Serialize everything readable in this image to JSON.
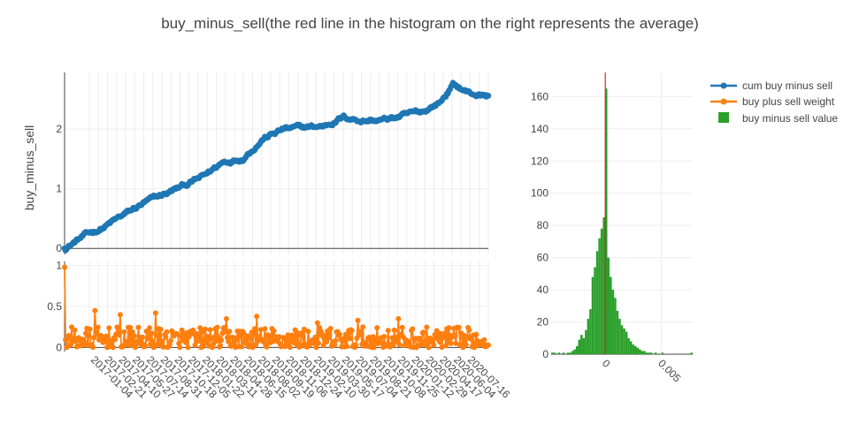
{
  "chart_data": [
    {
      "type": "line",
      "panel": "cum",
      "title": "buy_minus_sell(the red line in the histogram on the right represents the average)",
      "ylabel": "buy_minus_sell",
      "ylim": [
        -0.1,
        2.95
      ],
      "yticks": [
        0,
        1,
        2
      ],
      "series_name": "cum buy minus sell",
      "color": "#1f77b4",
      "x_range": [
        "2017-01-04",
        "2020-07-16"
      ],
      "anchors": [
        [
          "2017-01-04",
          0.0
        ],
        [
          "2017-03-01",
          0.2
        ],
        [
          "2017-05-01",
          0.35
        ],
        [
          "2017-07-01",
          0.55
        ],
        [
          "2017-09-01",
          0.75
        ],
        [
          "2017-11-01",
          0.9
        ],
        [
          "2018-01-01",
          1.05
        ],
        [
          "2018-03-01",
          1.2
        ],
        [
          "2018-05-01",
          1.45
        ],
        [
          "2018-07-01",
          1.53
        ],
        [
          "2018-09-01",
          1.85
        ],
        [
          "2018-11-01",
          2.0
        ],
        [
          "2019-01-01",
          2.02
        ],
        [
          "2019-03-01",
          2.05
        ],
        [
          "2019-05-01",
          2.2
        ],
        [
          "2019-07-01",
          2.15
        ],
        [
          "2019-09-01",
          2.15
        ],
        [
          "2019-11-01",
          2.22
        ],
        [
          "2020-01-01",
          2.3
        ],
        [
          "2020-02-20",
          2.45
        ],
        [
          "2020-04-01",
          2.75
        ],
        [
          "2020-05-20",
          2.6
        ],
        [
          "2020-07-16",
          2.55
        ]
      ]
    },
    {
      "type": "line",
      "panel": "weight",
      "ylim": [
        -0.05,
        1.05
      ],
      "yticks": [
        0,
        0.5,
        1
      ],
      "ytick_labels": [
        "0",
        "0.5",
        "1"
      ],
      "series_name": "buy plus sell weight",
      "color": "#ff7f0e",
      "x_tick_labels": [
        "2017-01-04",
        "2017-02-21",
        "2017-04-10",
        "2017-05-27",
        "2017-07-14",
        "2017-08-31",
        "2017-10-18",
        "2017-12-05",
        "2018-01-22",
        "2018-03-11",
        "2018-04-28",
        "2018-06-15",
        "2018-08-02",
        "2018-09-19",
        "2018-11-06",
        "2018-12-24",
        "2019-02-10",
        "2019-03-30",
        "2019-05-17",
        "2019-07-04",
        "2019-08-21",
        "2019-10-08",
        "2019-11-25",
        "2020-01-12",
        "2020-02-29",
        "2020-04-17",
        "2020-06-04",
        "2020-07-16"
      ],
      "first_value": 0.98,
      "typical_range": [
        0.0,
        0.25
      ],
      "peaks": [
        0.45,
        0.4,
        0.42,
        0.35,
        0.38,
        0.3,
        0.33,
        0.35
      ]
    },
    {
      "type": "bar",
      "panel": "histogram",
      "series_name": "buy minus sell value",
      "color": "#2ca02c",
      "mean_line_color": "#d62728",
      "xlim": [
        -0.0048,
        0.0078
      ],
      "xticks": [
        0,
        0.005
      ],
      "xtick_labels": [
        "0",
        "0.005"
      ],
      "ylim": [
        0,
        175
      ],
      "yticks": [
        0,
        20,
        40,
        60,
        80,
        100,
        120,
        140,
        160
      ],
      "bin_width": 0.0002,
      "bins": [
        [
          -0.0048,
          1
        ],
        [
          -0.0046,
          1
        ],
        [
          -0.0044,
          0
        ],
        [
          -0.0042,
          1
        ],
        [
          -0.004,
          0
        ],
        [
          -0.0038,
          1
        ],
        [
          -0.0036,
          0
        ],
        [
          -0.0034,
          1
        ],
        [
          -0.0032,
          1
        ],
        [
          -0.003,
          2
        ],
        [
          -0.0028,
          3
        ],
        [
          -0.0026,
          5
        ],
        [
          -0.0024,
          9
        ],
        [
          -0.0022,
          12
        ],
        [
          -0.002,
          10
        ],
        [
          -0.0018,
          15
        ],
        [
          -0.0016,
          22
        ],
        [
          -0.0014,
          28
        ],
        [
          -0.0012,
          48
        ],
        [
          -0.001,
          54
        ],
        [
          -0.0008,
          64
        ],
        [
          -0.0006,
          72
        ],
        [
          -0.0004,
          78
        ],
        [
          -0.0002,
          85
        ],
        [
          0.0,
          165
        ],
        [
          0.0002,
          60
        ],
        [
          0.0004,
          48
        ],
        [
          0.0006,
          40
        ],
        [
          0.0008,
          35
        ],
        [
          0.001,
          27
        ],
        [
          0.0012,
          22
        ],
        [
          0.0014,
          18
        ],
        [
          0.0016,
          16
        ],
        [
          0.0018,
          14
        ],
        [
          0.002,
          10
        ],
        [
          0.0022,
          8
        ],
        [
          0.0024,
          6
        ],
        [
          0.0026,
          5
        ],
        [
          0.0028,
          4
        ],
        [
          0.003,
          3
        ],
        [
          0.0032,
          2
        ],
        [
          0.0034,
          2
        ],
        [
          0.0036,
          1
        ],
        [
          0.0038,
          1
        ],
        [
          0.004,
          1
        ],
        [
          0.0042,
          0
        ],
        [
          0.0044,
          1
        ],
        [
          0.0046,
          0
        ],
        [
          0.0048,
          0
        ],
        [
          0.005,
          1
        ],
        [
          0.0052,
          0
        ],
        [
          0.0054,
          0
        ],
        [
          0.0056,
          0
        ],
        [
          0.0058,
          0
        ],
        [
          0.006,
          0
        ],
        [
          0.0062,
          0
        ],
        [
          0.0064,
          0
        ],
        [
          0.0066,
          0
        ],
        [
          0.0068,
          0
        ],
        [
          0.007,
          0
        ],
        [
          0.0072,
          0
        ],
        [
          0.0074,
          0
        ],
        [
          0.0076,
          1
        ]
      ],
      "mean": 2e-05
    }
  ],
  "legend": {
    "placement": "top-right",
    "items": [
      {
        "label": "cum buy minus sell",
        "color": "#1f77b4",
        "kind": "line-marker"
      },
      {
        "label": "buy plus sell weight",
        "color": "#ff7f0e",
        "kind": "line-marker"
      },
      {
        "label": "buy minus sell value",
        "color": "#2ca02c",
        "kind": "box"
      }
    ]
  }
}
